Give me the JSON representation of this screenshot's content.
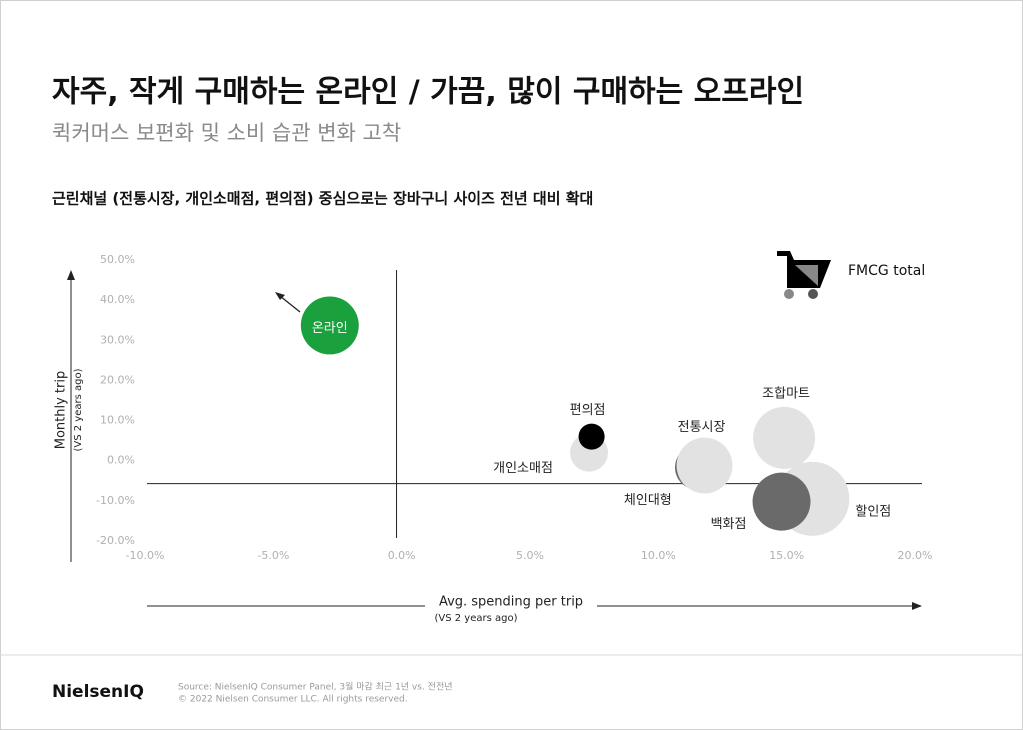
{
  "header": {
    "title": "자주, 작게 구매하는 온라인 / 가끔, 많이 구매하는 오프라인",
    "subtitle": "퀵커머스 보편화 및 소비 습관 변화 고착"
  },
  "chart_data": {
    "type": "bubble",
    "title": "근린채널 (전통시장, 개인소매점, 편의점) 중심으로는 장바구니 사이즈 전년 대비 확대",
    "x_label": "Avg. spending per trip",
    "x_sublabel": "(VS 2 years ago)",
    "y_label": "Monthly trip",
    "y_sublabel": "(VS 2 years ago)",
    "legend_label": "FMCG total",
    "xlim": [
      -10,
      20
    ],
    "xticks": [
      {
        "value": -10,
        "label": "-10.0%"
      },
      {
        "value": -5,
        "label": "-5.0%"
      },
      {
        "value": 0,
        "label": "0.0%"
      },
      {
        "value": 5,
        "label": "5.0%"
      },
      {
        "value": 10,
        "label": "10.0%"
      },
      {
        "value": 15,
        "label": "15.0%"
      },
      {
        "value": 20,
        "label": "20.0%"
      }
    ],
    "ylim": [
      -20,
      50
    ],
    "yticks": [
      {
        "value": -20,
        "label": "-20.0%"
      },
      {
        "value": -10,
        "label": "-10.0%"
      },
      {
        "value": 0,
        "label": "0.0%"
      },
      {
        "value": 10,
        "label": "10.0%"
      },
      {
        "value": 20,
        "label": "20.0%"
      },
      {
        "value": 30,
        "label": "30.0%"
      },
      {
        "value": 40,
        "label": "40.0%"
      },
      {
        "value": 50,
        "label": "50.0%"
      }
    ],
    "xref": -0.2,
    "yref": -5.7,
    "series": [
      {
        "name": "온라인",
        "color": "#1aa03c",
        "x": [
          -2.8
        ],
        "values": [
          33.7
        ],
        "sizes": [
          8.4
        ]
      },
      {
        "name": "개인소매점",
        "color": "#e2e2e2",
        "x": [
          7.3
        ],
        "values": [
          2.0
        ],
        "sizes": [
          3.6
        ]
      },
      {
        "name": "편의점",
        "color": "#000000",
        "x": [
          7.4
        ],
        "values": [
          6.0
        ],
        "sizes": [
          1.7
        ]
      },
      {
        "name": "체인대형",
        "color": "#6e6e6e",
        "x": [
          11.5
        ],
        "values": [
          -1.7
        ],
        "sizes": [
          4.8
        ]
      },
      {
        "name": "전통시장",
        "color": "#e2e2e2",
        "x": [
          11.8
        ],
        "values": [
          -1.2
        ],
        "sizes": [
          7.8
        ]
      },
      {
        "name": "조합마트",
        "color": "#e2e2e2",
        "x": [
          14.9
        ],
        "values": [
          5.7
        ],
        "sizes": [
          9.6
        ]
      },
      {
        "name": "할인점",
        "color": "#e2e2e2",
        "x": [
          16.0
        ],
        "values": [
          -9.5
        ],
        "sizes": [
          13.7
        ]
      },
      {
        "name": "백화점",
        "color": "#6a6a6a",
        "x": [
          14.8
        ],
        "values": [
          -10.2
        ],
        "sizes": [
          8.4
        ]
      }
    ]
  },
  "footer": {
    "brand": "NielsenIQ",
    "source": "Source: NielsenIQ Consumer Panel, 3월 마감 최근 1년 vs. 전전년",
    "copyright": "© 2022 Nielsen Consumer LLC. All rights reserved."
  }
}
